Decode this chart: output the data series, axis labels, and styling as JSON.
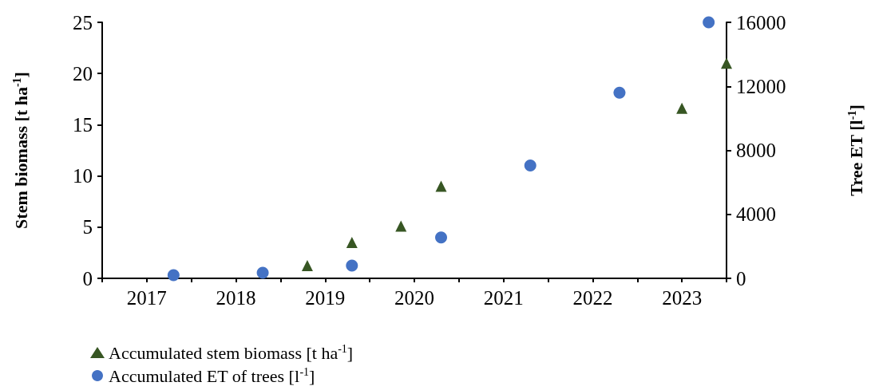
{
  "chart_data": {
    "type": "scatter",
    "ylabel": "Stem biomass [t ha$^{-1}$]",
    "y2label": "Tree ET [l$^{-1}$]",
    "xlim": [
      2017,
      2024
    ],
    "xticks": [
      {
        "value": 2017,
        "label": null
      },
      {
        "value": 2018,
        "label": null
      },
      {
        "value": 2019,
        "label": null
      },
      {
        "value": 2020,
        "label": null
      },
      {
        "value": 2021,
        "label": null
      },
      {
        "value": 2022,
        "label": null
      },
      {
        "value": 2023,
        "label": null
      },
      {
        "value": 2024,
        "label": null
      },
      {
        "value": 2017.5,
        "label": "2017"
      },
      {
        "value": 2018.5,
        "label": "2018"
      },
      {
        "value": 2019.5,
        "label": "2019"
      },
      {
        "value": 2020.5,
        "label": "2020"
      },
      {
        "value": 2021.5,
        "label": "2021"
      },
      {
        "value": 2022.5,
        "label": "2022"
      },
      {
        "value": 2023.5,
        "label": "2023"
      }
    ],
    "ylim": [
      0,
      25
    ],
    "yticks": [
      0,
      5,
      10,
      15,
      20,
      25
    ],
    "y2lim": [
      0,
      16000
    ],
    "y2ticks": [
      0,
      4000,
      8000,
      12000,
      16000
    ],
    "grid": false,
    "legend": "bottom left",
    "series": [
      {
        "name": "Accumulated stem biomass [t ha$^{-1}$]",
        "color": "#375623",
        "marker": "triangle",
        "x": [
          2019.3,
          2019.8,
          2020.35,
          2020.8,
          2023.5,
          2024.0
        ],
        "values": [
          1.25,
          3.5,
          5.1,
          9.0,
          16.6,
          21.0
        ]
      },
      {
        "name": "Accumulated ET of trees [l$^{-1}$]",
        "color": "#4472c4",
        "marker": "circle",
        "axis": "y2",
        "x": [
          2017.8,
          2018.8,
          2019.8,
          2020.8,
          2021.8,
          2022.8,
          2023.8
        ],
        "values": [
          200,
          350,
          800,
          2550,
          7050,
          11600,
          16000
        ]
      }
    ]
  }
}
